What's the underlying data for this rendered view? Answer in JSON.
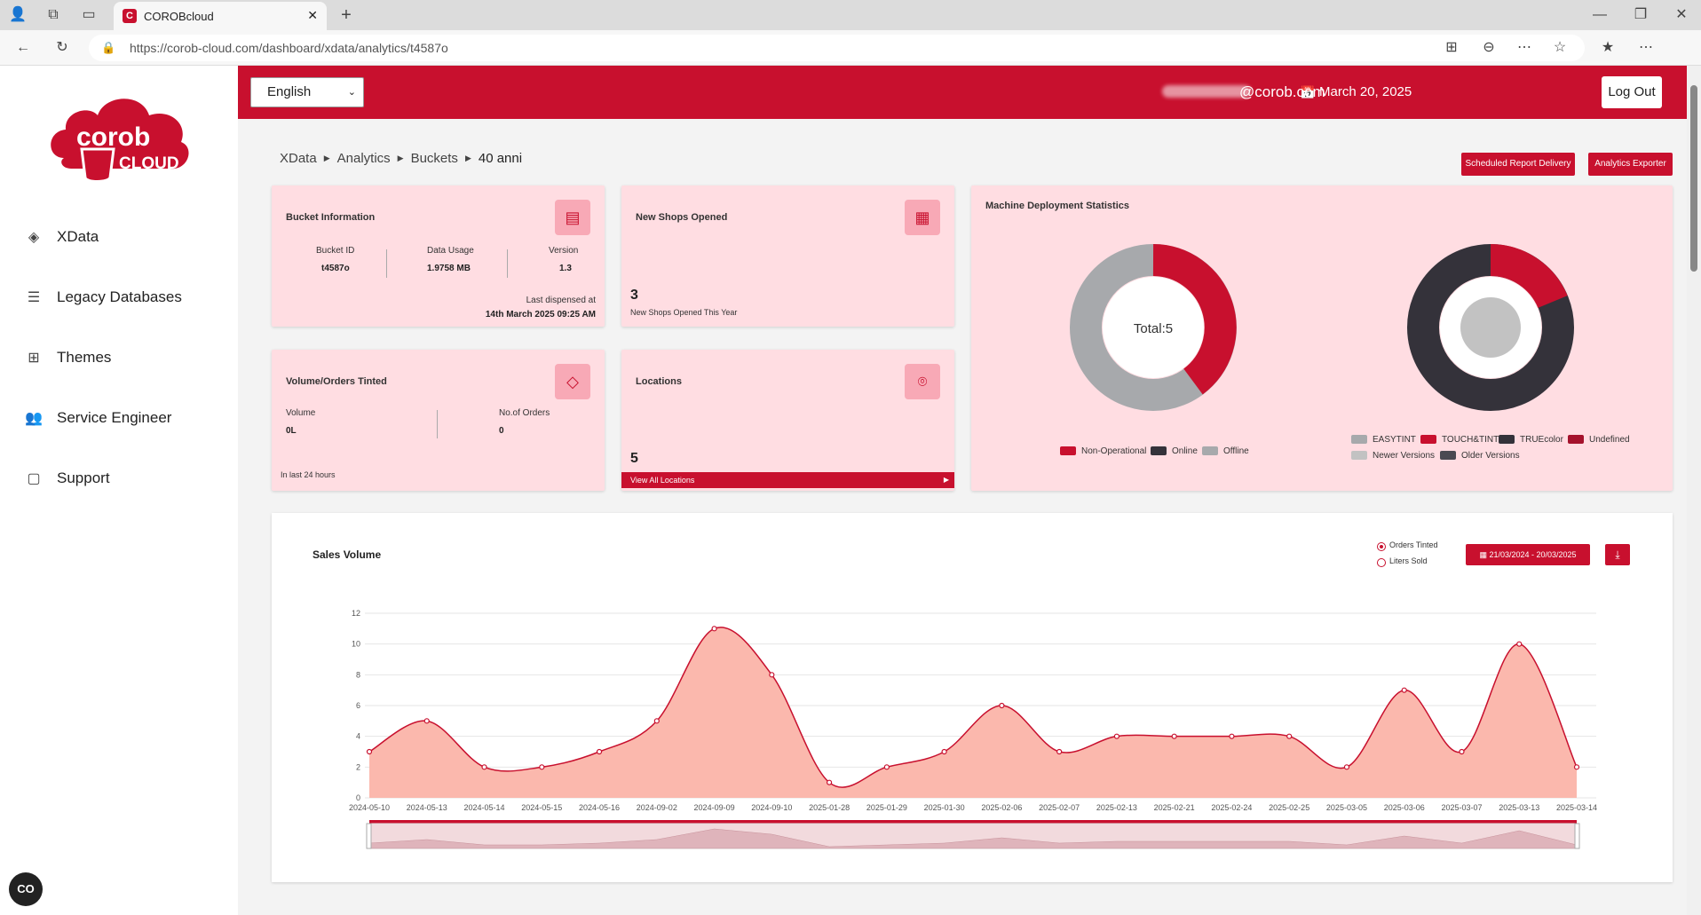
{
  "browser": {
    "tab_title": "COROBcloud",
    "url": "https://corob-cloud.com/dashboard/xdata/analytics/t4587o"
  },
  "sidebar": {
    "logo_text_1": "corob",
    "logo_text_2": "CLOUD",
    "items": [
      {
        "label": "XData",
        "icon": "layers-icon"
      },
      {
        "label": "Legacy Databases",
        "icon": "database-icon"
      },
      {
        "label": "Themes",
        "icon": "grid-icon"
      },
      {
        "label": "Service Engineer",
        "icon": "engineer-icon"
      },
      {
        "label": "Support",
        "icon": "chat-icon"
      }
    ]
  },
  "header": {
    "language": "English",
    "date": "March 20, 2025",
    "email": "@corob.com",
    "logout_label": "Log Out",
    "accent": "#c8102e"
  },
  "breadcrumb": [
    "XData",
    "Analytics",
    "Buckets",
    "40 anni"
  ],
  "actions": {
    "scheduled": "Scheduled Report Delivery",
    "exporter": "Analytics Exporter"
  },
  "bucket_info": {
    "title": "Bucket Information",
    "id_label": "Bucket ID",
    "id_value": "t4587o",
    "usage_label": "Data Usage",
    "usage_value": "1.9758 MB",
    "version_label": "Version",
    "version_value": "1.3",
    "dispensed_label": "Last dispensed at",
    "dispensed_value": "14th March 2025 09:25 AM"
  },
  "new_shops": {
    "title": "New Shops Opened",
    "value": "3",
    "caption": "New Shops Opened This Year"
  },
  "volume": {
    "title": "Volume/Orders Tinted",
    "volume_label": "Volume",
    "volume_value": "0L",
    "orders_label": "No.of Orders",
    "orders_value": "0",
    "footer": "In last 24 hours"
  },
  "locations": {
    "title": "Locations",
    "value": "5",
    "link": "View All Locations"
  },
  "machine": {
    "title": "Machine Deployment Statistics",
    "donut1_center": "Total:5",
    "legend1": [
      "Non-Operational",
      "Online",
      "Offline"
    ],
    "legend2": [
      "EASYTINT",
      "TOUCH&TINT",
      "TRUEcolor",
      "Undefined",
      "Newer Versions",
      "Older Versions"
    ]
  },
  "sales": {
    "title": "Sales Volume",
    "radio1": "Orders Tinted",
    "radio2": "Liters Sold",
    "date_range": "21/03/2024 - 20/03/2025"
  },
  "chart_data": {
    "type": "area",
    "x": [
      "2024-05-10",
      "2024-05-13",
      "2024-05-14",
      "2024-05-15",
      "2024-05-16",
      "2024-09-02",
      "2024-09-09",
      "2024-09-10",
      "2025-01-28",
      "2025-01-29",
      "2025-01-30",
      "2025-02-06",
      "2025-02-07",
      "2025-02-13",
      "2025-02-21",
      "2025-02-24",
      "2025-02-25",
      "2025-03-05",
      "2025-03-06",
      "2025-03-07",
      "2025-03-13",
      "2025-03-14"
    ],
    "series": [
      {
        "values": [
          3,
          5,
          2,
          2,
          3,
          5,
          11,
          8,
          1,
          2,
          3,
          6,
          3,
          4,
          4,
          4,
          4,
          2,
          7,
          3,
          10,
          2
        ]
      }
    ],
    "yticks": [
      "0",
      "2",
      "4",
      "6",
      "8",
      "10",
      "12"
    ],
    "ylim": [
      0,
      12
    ],
    "grid": true
  }
}
